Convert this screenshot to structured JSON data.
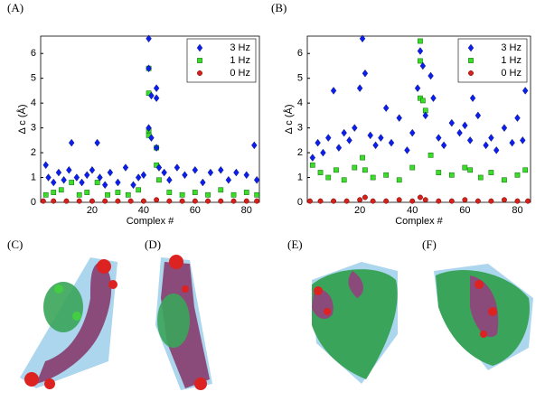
{
  "panel_labels": [
    "(A)",
    "(B)",
    "(C)",
    "(D)",
    "(E)",
    "(F)"
  ],
  "chart_data": [
    {
      "type": "scatter",
      "xlabel": "Complex #",
      "ylabel": "Δ c (Å)",
      "xlim": [
        0,
        85
      ],
      "ylim": [
        0,
        6.7
      ],
      "xticks": [
        20,
        40,
        60,
        80
      ],
      "yticks": [
        0,
        1,
        2,
        3,
        4,
        5,
        6
      ],
      "legend": "top-right",
      "series": [
        {
          "name": "3 Hz",
          "color": "#0a1ef0",
          "marker": "diamond",
          "x": [
            2,
            3,
            5,
            7,
            9,
            11,
            12,
            14,
            16,
            18,
            20,
            22,
            23,
            25,
            27,
            30,
            33,
            36,
            38,
            40,
            42,
            42,
            42,
            43,
            43,
            45,
            45,
            45,
            46,
            48,
            50,
            53,
            56,
            60,
            63,
            66,
            70,
            73,
            76,
            80,
            83,
            84
          ],
          "values": [
            1.5,
            1.0,
            0.8,
            1.2,
            0.9,
            1.3,
            2.4,
            1.0,
            0.8,
            1.1,
            1.3,
            2.4,
            1.0,
            0.7,
            1.2,
            0.8,
            1.4,
            0.7,
            1.0,
            1.1,
            6.6,
            5.4,
            3.0,
            4.3,
            2.6,
            4.6,
            4.2,
            2.2,
            1.4,
            1.2,
            0.9,
            1.4,
            1.1,
            1.3,
            0.8,
            1.2,
            1.3,
            0.9,
            1.2,
            1.1,
            2.3,
            0.9
          ]
        },
        {
          "name": "1 Hz",
          "color": "#3ddc2a",
          "marker": "square",
          "x": [
            2,
            5,
            8,
            12,
            15,
            18,
            22,
            26,
            30,
            34,
            38,
            42,
            42,
            42,
            42,
            45,
            45,
            46,
            50,
            55,
            60,
            65,
            70,
            75,
            80,
            84
          ],
          "values": [
            0.3,
            0.4,
            0.5,
            0.8,
            0.3,
            0.4,
            0.8,
            0.3,
            0.4,
            0.3,
            0.5,
            5.4,
            4.4,
            2.9,
            2.7,
            2.2,
            1.5,
            0.9,
            0.4,
            0.3,
            0.4,
            0.3,
            0.5,
            0.3,
            0.4,
            0.3
          ]
        },
        {
          "name": "0 Hz",
          "color": "#d8201a",
          "marker": "circle",
          "x": [
            1,
            5,
            10,
            15,
            20,
            25,
            30,
            35,
            40,
            45,
            50,
            55,
            60,
            65,
            70,
            75,
            80,
            84
          ],
          "values": [
            0.05,
            0.05,
            0.05,
            0.05,
            0.05,
            0.05,
            0.05,
            0.05,
            0.05,
            0.1,
            0.05,
            0.05,
            0.05,
            0.05,
            0.05,
            0.05,
            0.05,
            0.05
          ]
        }
      ]
    },
    {
      "type": "scatter",
      "xlabel": "Complex #",
      "ylabel": "Δ c (Å)",
      "xlim": [
        0,
        85
      ],
      "ylim": [
        0,
        6.7
      ],
      "xticks": [
        20,
        40,
        60,
        80
      ],
      "yticks": [
        0,
        1,
        2,
        3,
        4,
        5,
        6
      ],
      "legend": "top-right",
      "series": [
        {
          "name": "3 Hz",
          "color": "#0a1ef0",
          "marker": "diamond",
          "x": [
            2,
            4,
            6,
            8,
            10,
            12,
            14,
            16,
            18,
            20,
            21,
            22,
            24,
            26,
            28,
            30,
            32,
            35,
            38,
            40,
            42,
            43,
            44,
            45,
            47,
            48,
            50,
            52,
            55,
            58,
            60,
            62,
            63,
            65,
            68,
            70,
            72,
            75,
            78,
            80,
            82,
            83
          ],
          "values": [
            1.8,
            2.4,
            2.0,
            2.6,
            4.5,
            2.2,
            2.8,
            2.5,
            3.0,
            4.6,
            6.6,
            5.2,
            2.7,
            2.3,
            2.6,
            3.8,
            2.4,
            3.4,
            2.1,
            2.8,
            4.6,
            6.1,
            5.5,
            3.5,
            5.1,
            4.2,
            2.6,
            2.3,
            3.2,
            2.8,
            3.1,
            2.5,
            4.2,
            3.5,
            2.3,
            2.6,
            2.1,
            3.0,
            2.4,
            3.4,
            2.5,
            4.5
          ]
        },
        {
          "name": "1 Hz",
          "color": "#3ddc2a",
          "marker": "square",
          "x": [
            2,
            5,
            8,
            11,
            14,
            18,
            21,
            22,
            25,
            30,
            35,
            40,
            43,
            43,
            43,
            44,
            45,
            47,
            50,
            55,
            60,
            62,
            66,
            70,
            75,
            80,
            83
          ],
          "values": [
            1.5,
            1.2,
            1.0,
            1.3,
            0.9,
            1.4,
            1.8,
            1.3,
            1.0,
            1.1,
            0.9,
            1.4,
            6.5,
            5.7,
            4.2,
            4.1,
            3.7,
            1.9,
            1.2,
            1.1,
            1.4,
            1.3,
            1.0,
            1.2,
            0.9,
            1.1,
            1.3
          ]
        },
        {
          "name": "0 Hz",
          "color": "#d8201a",
          "marker": "circle",
          "x": [
            1,
            5,
            10,
            15,
            20,
            22,
            25,
            30,
            35,
            40,
            43,
            45,
            50,
            55,
            60,
            65,
            70,
            75,
            80,
            84
          ],
          "values": [
            0.05,
            0.05,
            0.05,
            0.05,
            0.1,
            0.2,
            0.05,
            0.05,
            0.1,
            0.05,
            0.2,
            0.1,
            0.05,
            0.05,
            0.1,
            0.05,
            0.05,
            0.1,
            0.05,
            0.05
          ]
        }
      ]
    }
  ]
}
